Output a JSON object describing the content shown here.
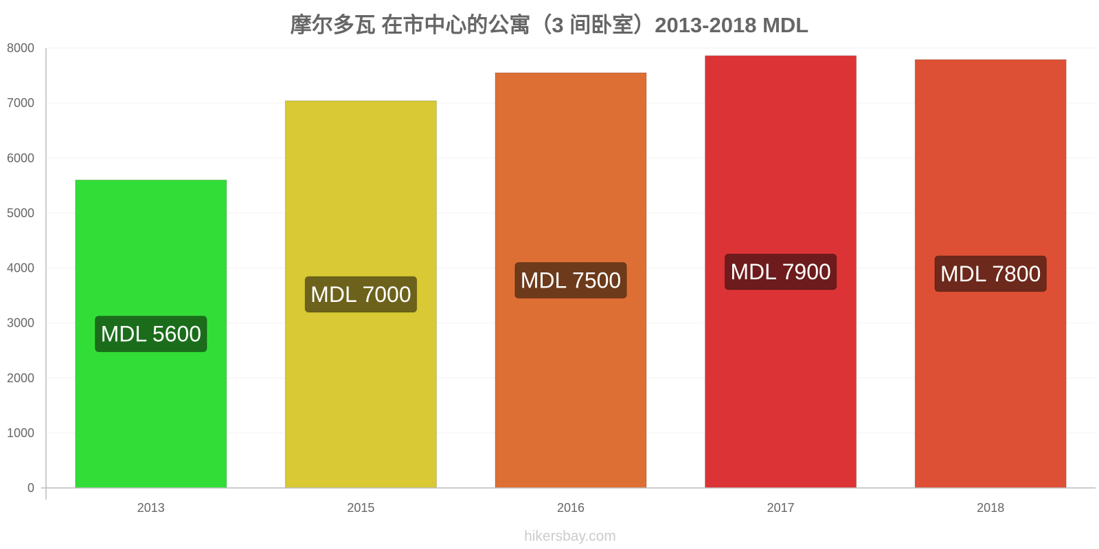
{
  "chart_data": {
    "type": "bar",
    "title": "摩尔多瓦 在市中心的公寓（3 间卧室）2013-2018 MDL",
    "categories": [
      "2013",
      "2015",
      "2016",
      "2017",
      "2018"
    ],
    "values": [
      5600,
      7000,
      7500,
      7900,
      7800
    ],
    "bar_heights": [
      5600,
      7040,
      7550,
      7860,
      7790
    ],
    "value_labels": [
      "MDL 5600",
      "MDL 7000",
      "MDL 7500",
      "MDL 7900",
      "MDL 7800"
    ],
    "bar_colors": [
      "#33dd38",
      "#d8c935",
      "#de6f34",
      "#dc3436",
      "#de5035"
    ],
    "label_bg_colors": [
      "#1b6d1b",
      "#6d621c",
      "#6d3a1b",
      "#6d1b1c",
      "#6d291b"
    ],
    "yticks": [
      0,
      1000,
      2000,
      3000,
      4000,
      5000,
      6000,
      7000,
      8000
    ],
    "ylim": [
      0,
      8000
    ],
    "xlabel": "",
    "ylabel": "",
    "grid": true,
    "legend": "none"
  },
  "watermark": "hikersbay.com"
}
